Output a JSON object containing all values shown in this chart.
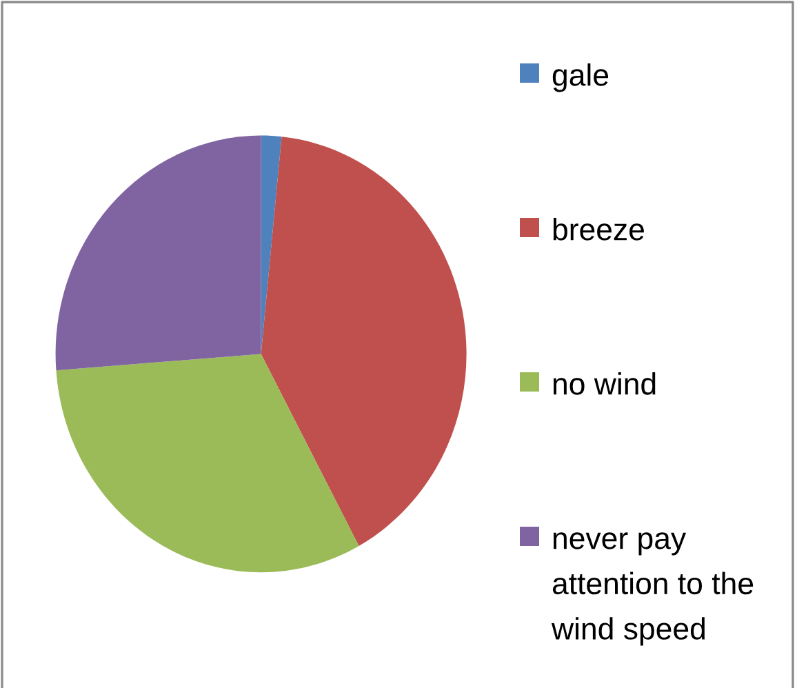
{
  "chart_data": {
    "type": "pie",
    "categories": [
      "gale",
      "breeze",
      "no wind",
      "never pay attention to the wind speed"
    ],
    "values": [
      1.6,
      40.5,
      31.7,
      26.2
    ],
    "colors": [
      "#4f81bd",
      "#c0504d",
      "#9bbb59",
      "#8064a2"
    ],
    "legend": "right"
  }
}
